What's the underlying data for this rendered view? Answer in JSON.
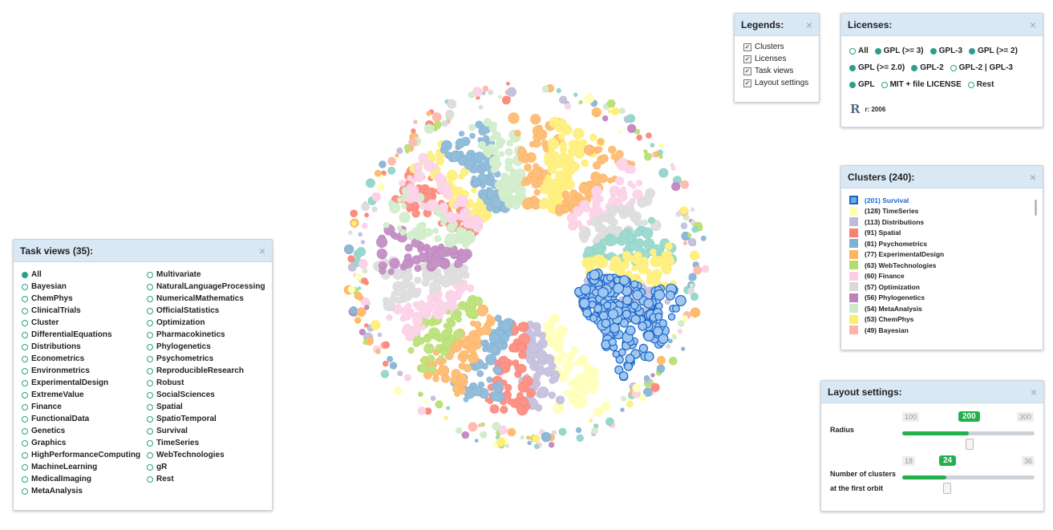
{
  "legends": {
    "title": "Legends:",
    "items": [
      {
        "label": "Clusters",
        "checked": true
      },
      {
        "label": "Licenses",
        "checked": true
      },
      {
        "label": "Task views",
        "checked": true
      },
      {
        "label": "Layout settings",
        "checked": true
      }
    ]
  },
  "licenses": {
    "title": "Licenses:",
    "rows": [
      [
        {
          "label": "All",
          "on": false
        },
        {
          "label": "GPL (>= 3)",
          "on": true
        },
        {
          "label": "GPL-3",
          "on": true
        },
        {
          "label": "GPL (>= 2)",
          "on": true
        }
      ],
      [
        {
          "label": "GPL (>= 2.0)",
          "on": true
        },
        {
          "label": "GPL-2",
          "on": true
        },
        {
          "label": "GPL-2 | GPL-3",
          "on": false
        }
      ],
      [
        {
          "label": "GPL",
          "on": true
        },
        {
          "label": "MIT + file LICENSE",
          "on": false
        },
        {
          "label": "Rest",
          "on": false
        }
      ]
    ],
    "r_logo": "R",
    "r_label": "r: 2006"
  },
  "clusters": {
    "title": "Clusters (240):",
    "items": [
      {
        "label": "(201) Survival",
        "color": "#6fa8dc",
        "selected": true
      },
      {
        "label": "(128) TimeSeries",
        "color": "#ffffb3"
      },
      {
        "label": "(113) Distributions",
        "color": "#bebada"
      },
      {
        "label": "(91) Spatial",
        "color": "#fb8072"
      },
      {
        "label": "(81) Psychometrics",
        "color": "#80b1d3"
      },
      {
        "label": "(77) ExperimentalDesign",
        "color": "#fdb462"
      },
      {
        "label": "(63) WebTechnologies",
        "color": "#b3de69"
      },
      {
        "label": "(60) Finance",
        "color": "#fccde5"
      },
      {
        "label": "(57) Optimization",
        "color": "#d9d9d9"
      },
      {
        "label": "(56) Phylogenetics",
        "color": "#bc80bd"
      },
      {
        "label": "(54) MetaAnalysis",
        "color": "#ccebc5"
      },
      {
        "label": "(53) ChemPhys",
        "color": "#ffed6f"
      },
      {
        "label": "(49) Bayesian",
        "color": "#ffb3a7"
      }
    ]
  },
  "taskviews": {
    "title": "Task views (35):",
    "col1": [
      {
        "label": "All",
        "on": true
      },
      {
        "label": "Bayesian"
      },
      {
        "label": "ChemPhys"
      },
      {
        "label": "ClinicalTrials"
      },
      {
        "label": "Cluster"
      },
      {
        "label": "DifferentialEquations"
      },
      {
        "label": "Distributions"
      },
      {
        "label": "Econometrics"
      },
      {
        "label": "Environmetrics"
      },
      {
        "label": "ExperimentalDesign"
      },
      {
        "label": "ExtremeValue"
      },
      {
        "label": "Finance"
      },
      {
        "label": "FunctionalData"
      },
      {
        "label": "Genetics"
      },
      {
        "label": "Graphics"
      },
      {
        "label": "HighPerformanceComputing"
      },
      {
        "label": "MachineLearning"
      },
      {
        "label": "MedicalImaging"
      },
      {
        "label": "MetaAnalysis"
      }
    ],
    "col2": [
      {
        "label": "Multivariate"
      },
      {
        "label": "NaturalLanguageProcessing"
      },
      {
        "label": "NumericalMathematics"
      },
      {
        "label": "OfficialStatistics"
      },
      {
        "label": "Optimization"
      },
      {
        "label": "Pharmacokinetics"
      },
      {
        "label": "Phylogenetics"
      },
      {
        "label": "Psychometrics"
      },
      {
        "label": "ReproducibleResearch"
      },
      {
        "label": "Robust"
      },
      {
        "label": "SocialSciences"
      },
      {
        "label": "Spatial"
      },
      {
        "label": "SpatioTemporal"
      },
      {
        "label": "Survival"
      },
      {
        "label": "TimeSeries"
      },
      {
        "label": "WebTechnologies"
      },
      {
        "label": "gR"
      },
      {
        "label": "Rest"
      }
    ]
  },
  "layout": {
    "title": "Layout settings:",
    "radius": {
      "label": "Radius",
      "min": "100",
      "max": "300",
      "value": "200",
      "fraction": 0.5
    },
    "clusters_orbit": {
      "label_line1": "Number of clusters",
      "label_line2": "at the first orbit",
      "min": "18",
      "max": "36",
      "value": "24",
      "fraction": 0.333
    }
  },
  "close_symbol": "×",
  "colors": {
    "accent_teal": "#2e9e8a",
    "slider_green": "#22b14c",
    "header_blue": "#d9e8f5",
    "highlight_cluster": "#1a66cc"
  }
}
